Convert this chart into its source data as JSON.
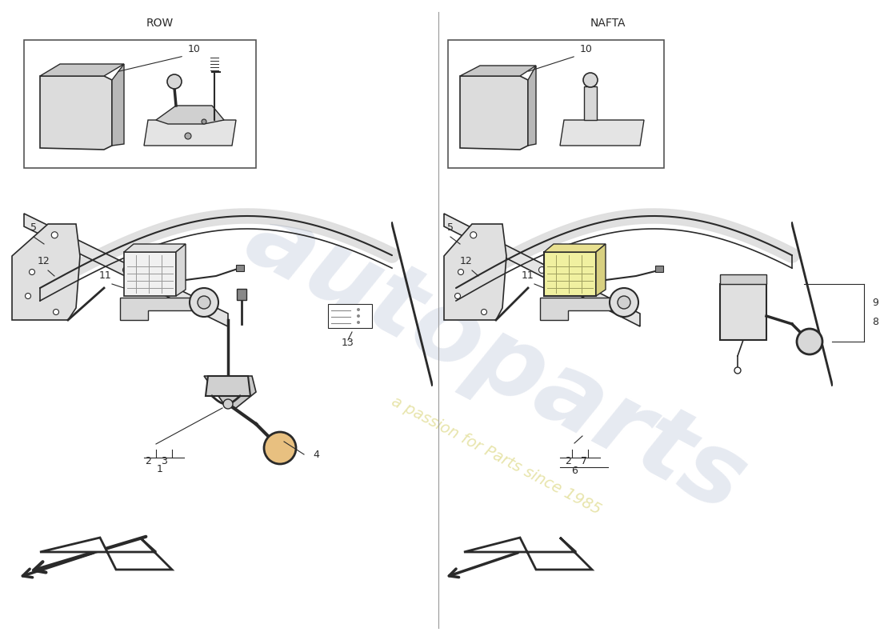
{
  "bg_color": "#ffffff",
  "line_color": "#2a2a2a",
  "fill_light": "#e8e8e8",
  "fill_medium": "#d8d8d8",
  "fill_dark": "#c8c8c8",
  "highlight_yellow": "#f0f0a0",
  "row_label": "ROW",
  "nafta_label": "NAFTA",
  "wm_color": "#c8d0e0",
  "wm_subcolor": "#e0dc90",
  "divider_color": "#999999"
}
